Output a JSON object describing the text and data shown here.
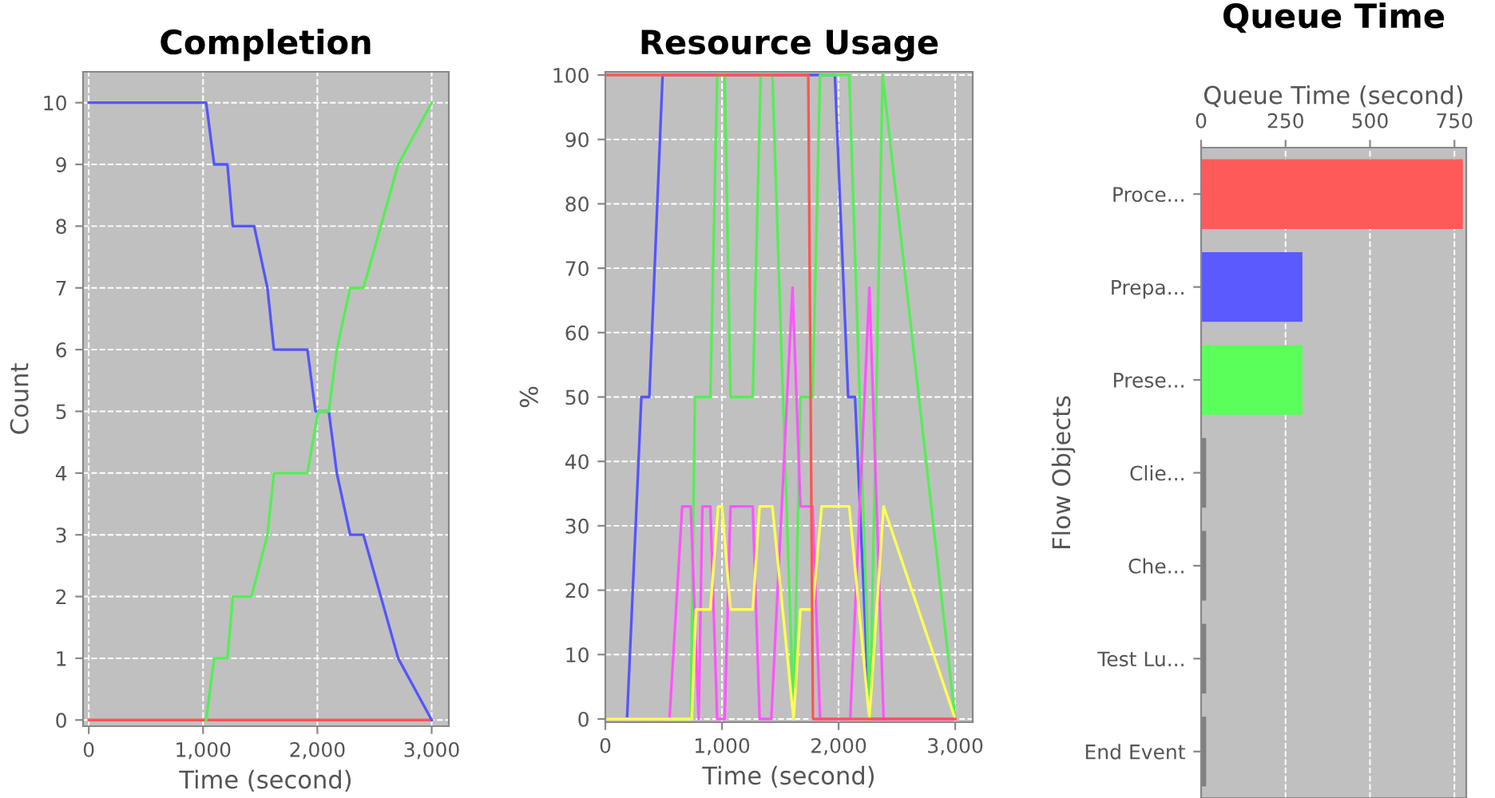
{
  "chart_data": [
    {
      "type": "line",
      "title": "Completion",
      "xlabel": "Time (second)",
      "ylabel": "Count",
      "xlim": [
        -50,
        3150
      ],
      "ylim": [
        -0.1,
        10.5
      ],
      "xticks": [
        0,
        {
          "value": 1000,
          "label": "1,000"
        },
        {
          "value": 2000,
          "label": "2,000"
        },
        {
          "value": 3000,
          "label": "3,000"
        }
      ],
      "yticks": [
        0,
        1,
        2,
        3,
        4,
        5,
        6,
        7,
        8,
        9,
        10
      ],
      "grid": true,
      "series": [
        {
          "color": "#ff5555",
          "x": [
            0,
            3000
          ],
          "values": [
            0,
            0
          ]
        },
        {
          "color": "#5555ff",
          "x": [
            0,
            1027,
            1097,
            1213,
            1260,
            1447,
            1563,
            1620,
            1913,
            1983,
            2100,
            2170,
            2287,
            2403,
            2707,
            3000
          ],
          "values": [
            10,
            10,
            9,
            9,
            8,
            8,
            7,
            6,
            6,
            5,
            5,
            4,
            3,
            3,
            1,
            0
          ]
        },
        {
          "color": "#55ee55",
          "x": [
            1027,
            1097,
            1213,
            1260,
            1423,
            1563,
            1620,
            1913,
            2007,
            2100,
            2170,
            2287,
            2403,
            2707,
            3000
          ],
          "values": [
            0,
            1,
            1,
            2,
            2,
            3,
            4,
            4,
            5,
            5,
            6,
            7,
            7,
            9,
            10
          ]
        }
      ]
    },
    {
      "type": "line",
      "title": "Resource Usage",
      "xlabel": "Time (second)",
      "ylabel": "%",
      "xlim": [
        0,
        3150
      ],
      "ylim": [
        -0.5,
        100.5
      ],
      "xticks": [
        0,
        {
          "value": 1000,
          "label": "1,000"
        },
        {
          "value": 2000,
          "label": "2,000"
        },
        {
          "value": 3000,
          "label": "3,000"
        }
      ],
      "yticks": [
        0,
        10,
        20,
        30,
        40,
        50,
        60,
        70,
        80,
        90,
        100
      ],
      "grid": true,
      "series": [
        {
          "color": "#5555ff",
          "x": [
            0,
            186,
            309,
            377,
            491,
            1968,
            2082,
            2141,
            2264,
            3000
          ],
          "values": [
            0,
            0,
            50,
            50,
            100,
            100,
            50,
            50,
            0,
            0
          ]
        },
        {
          "color": "#55ee55",
          "x": [
            0,
            732,
            768,
            900,
            959,
            1023,
            1073,
            1264,
            1332,
            1432,
            1614,
            1673,
            1777,
            1841,
            2091,
            2270,
            2377,
            3000
          ],
          "values": [
            0,
            0,
            50,
            50,
            100,
            100,
            50,
            50,
            100,
            100,
            0,
            50,
            50,
            100,
            100,
            0,
            100,
            0
          ]
        },
        {
          "color": "#ff55ff",
          "x": [
            0,
            550,
            659,
            732,
            800,
            832,
            900,
            959,
            1023,
            1073,
            1264,
            1323,
            1423,
            1605,
            1673,
            1777,
            1841,
            2100,
            2264,
            2386,
            3000
          ],
          "values": [
            0,
            0,
            33,
            33,
            0,
            33,
            33,
            0,
            0,
            33,
            33,
            0,
            0,
            67,
            33,
            33,
            0,
            0,
            67,
            0,
            0
          ]
        },
        {
          "color": "#ffff55",
          "x": [
            0,
            740,
            777,
            900,
            968,
            1000,
            1073,
            1264,
            1323,
            1432,
            1614,
            1673,
            1777,
            1855,
            2091,
            2264,
            2386,
            3000
          ],
          "values": [
            0,
            0,
            17,
            17,
            33,
            33,
            17,
            17,
            33,
            33,
            0,
            17,
            17,
            33,
            33,
            0,
            33,
            0
          ]
        },
        {
          "color": "#ff5555",
          "x": [
            0,
            1740,
            1780,
            3000
          ],
          "values": [
            100,
            100,
            0,
            0
          ]
        }
      ]
    },
    {
      "type": "bar",
      "orientation": "horizontal",
      "title": "Queue Time",
      "xlabel": "Queue Time (second)",
      "ylabel": "Flow Objects",
      "xlim": [
        0,
        785
      ],
      "xticks": [
        0,
        250,
        500,
        750
      ],
      "grid": "x",
      "categories": [
        "Proce...",
        "Prepa...",
        "Prese...",
        "Clie...",
        "Che...",
        "Test Lu...",
        "End Event"
      ],
      "values": [
        775,
        300,
        300,
        15,
        15,
        15,
        15
      ],
      "colors": [
        "#ff5a5a",
        "#5a5aff",
        "#5aff5a",
        "#808080",
        "#808080",
        "#808080",
        "#808080"
      ]
    }
  ]
}
